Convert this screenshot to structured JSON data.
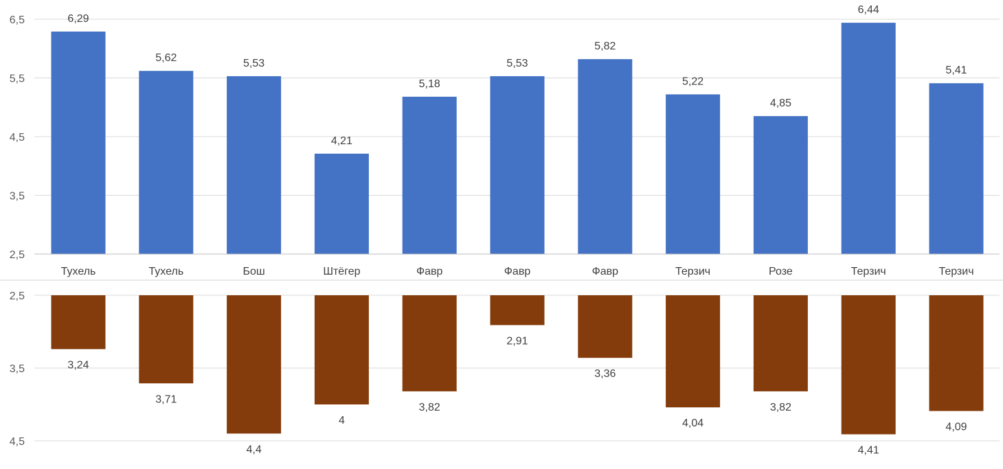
{
  "chart_data": [
    {
      "type": "bar",
      "orientation": "vertical",
      "color": "#4472C4",
      "categories": [
        "Тухель",
        "Тухель",
        "Бош",
        "Штёгер",
        "Фавр",
        "Фавр",
        "Фавр",
        "Терзич",
        "Розе",
        "Терзич",
        "Терзич"
      ],
      "values": [
        6.29,
        5.62,
        5.53,
        4.21,
        5.18,
        5.53,
        5.82,
        5.22,
        4.85,
        6.44,
        5.41
      ],
      "value_labels": [
        "6,29",
        "5,62",
        "5,53",
        "4,21",
        "5,18",
        "5,53",
        "5,82",
        "5,22",
        "4,85",
        "6,44",
        "5,41"
      ],
      "ylim": [
        2.5,
        6.5
      ],
      "yticks": [
        2.5,
        3.5,
        4.5,
        5.5,
        6.5
      ],
      "ytick_labels": [
        "2,5",
        "3,5",
        "4,5",
        "5,5",
        "6,5"
      ],
      "grid": true,
      "legend": "none"
    },
    {
      "type": "bar",
      "orientation": "vertical",
      "y_reversed": true,
      "color": "#843C0C",
      "categories": [
        "Тухель",
        "Тухель",
        "Бош",
        "Штёгер",
        "Фавр",
        "Фавр",
        "Фавр",
        "Терзич",
        "Розе",
        "Терзич",
        "Терзич"
      ],
      "values": [
        3.24,
        3.71,
        4.4,
        4.0,
        3.82,
        2.91,
        3.36,
        4.04,
        3.82,
        4.41,
        4.09
      ],
      "value_labels": [
        "3,24",
        "3,71",
        "4,4",
        "4",
        "3,82",
        "2,91",
        "3,36",
        "4,04",
        "3,82",
        "4,41",
        "4,09"
      ],
      "ylim": [
        2.5,
        4.5
      ],
      "yticks": [
        2.5,
        3.5,
        4.5
      ],
      "ytick_labels": [
        "2,5",
        "3,5",
        "4,5"
      ],
      "grid": true,
      "legend": "none"
    }
  ]
}
